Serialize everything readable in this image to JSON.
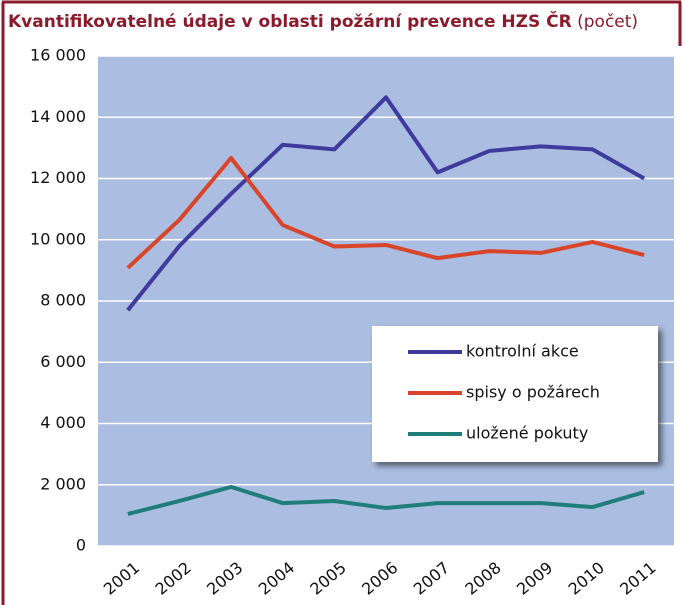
{
  "chart_data": {
    "type": "line",
    "title": "Kvantifikovatelné údaje v oblasti požární prevence HZS ČR",
    "unit": "(počet)",
    "categories": [
      "2001",
      "2002",
      "2003",
      "2004",
      "2005",
      "2006",
      "2007",
      "2008",
      "2009",
      "2010",
      "2011"
    ],
    "series": [
      {
        "name": "kontrolní akce",
        "color": "#3f3a9e",
        "values": [
          7700,
          9800,
          11500,
          13100,
          12950,
          14650,
          12200,
          12900,
          13050,
          12950,
          12000
        ]
      },
      {
        "name": "spisy o požárech",
        "color": "#d9452b",
        "values": [
          9080,
          10650,
          12670,
          10480,
          9780,
          9830,
          9400,
          9630,
          9570,
          9930,
          9500
        ]
      },
      {
        "name": "uložené pokuty",
        "color": "#1f7d7a",
        "values": [
          1045,
          1470,
          1930,
          1400,
          1470,
          1240,
          1400,
          1400,
          1400,
          1270,
          1760
        ]
      }
    ],
    "ylim": [
      0,
      16000
    ],
    "yticks": [
      0,
      {
        "value": 2000,
        "label": "2 000"
      },
      {
        "value": 4000,
        "label": "4 000"
      },
      {
        "value": 6000,
        "label": "6 000"
      },
      {
        "value": 8000,
        "label": "8 000"
      },
      {
        "value": 10000,
        "label": "10 000"
      },
      {
        "value": 12000,
        "label": "12 000"
      },
      {
        "value": 14000,
        "label": "14 000"
      },
      {
        "value": 16000,
        "label": "16 000"
      }
    ],
    "grid": true,
    "plot_background": "#abbde0"
  }
}
